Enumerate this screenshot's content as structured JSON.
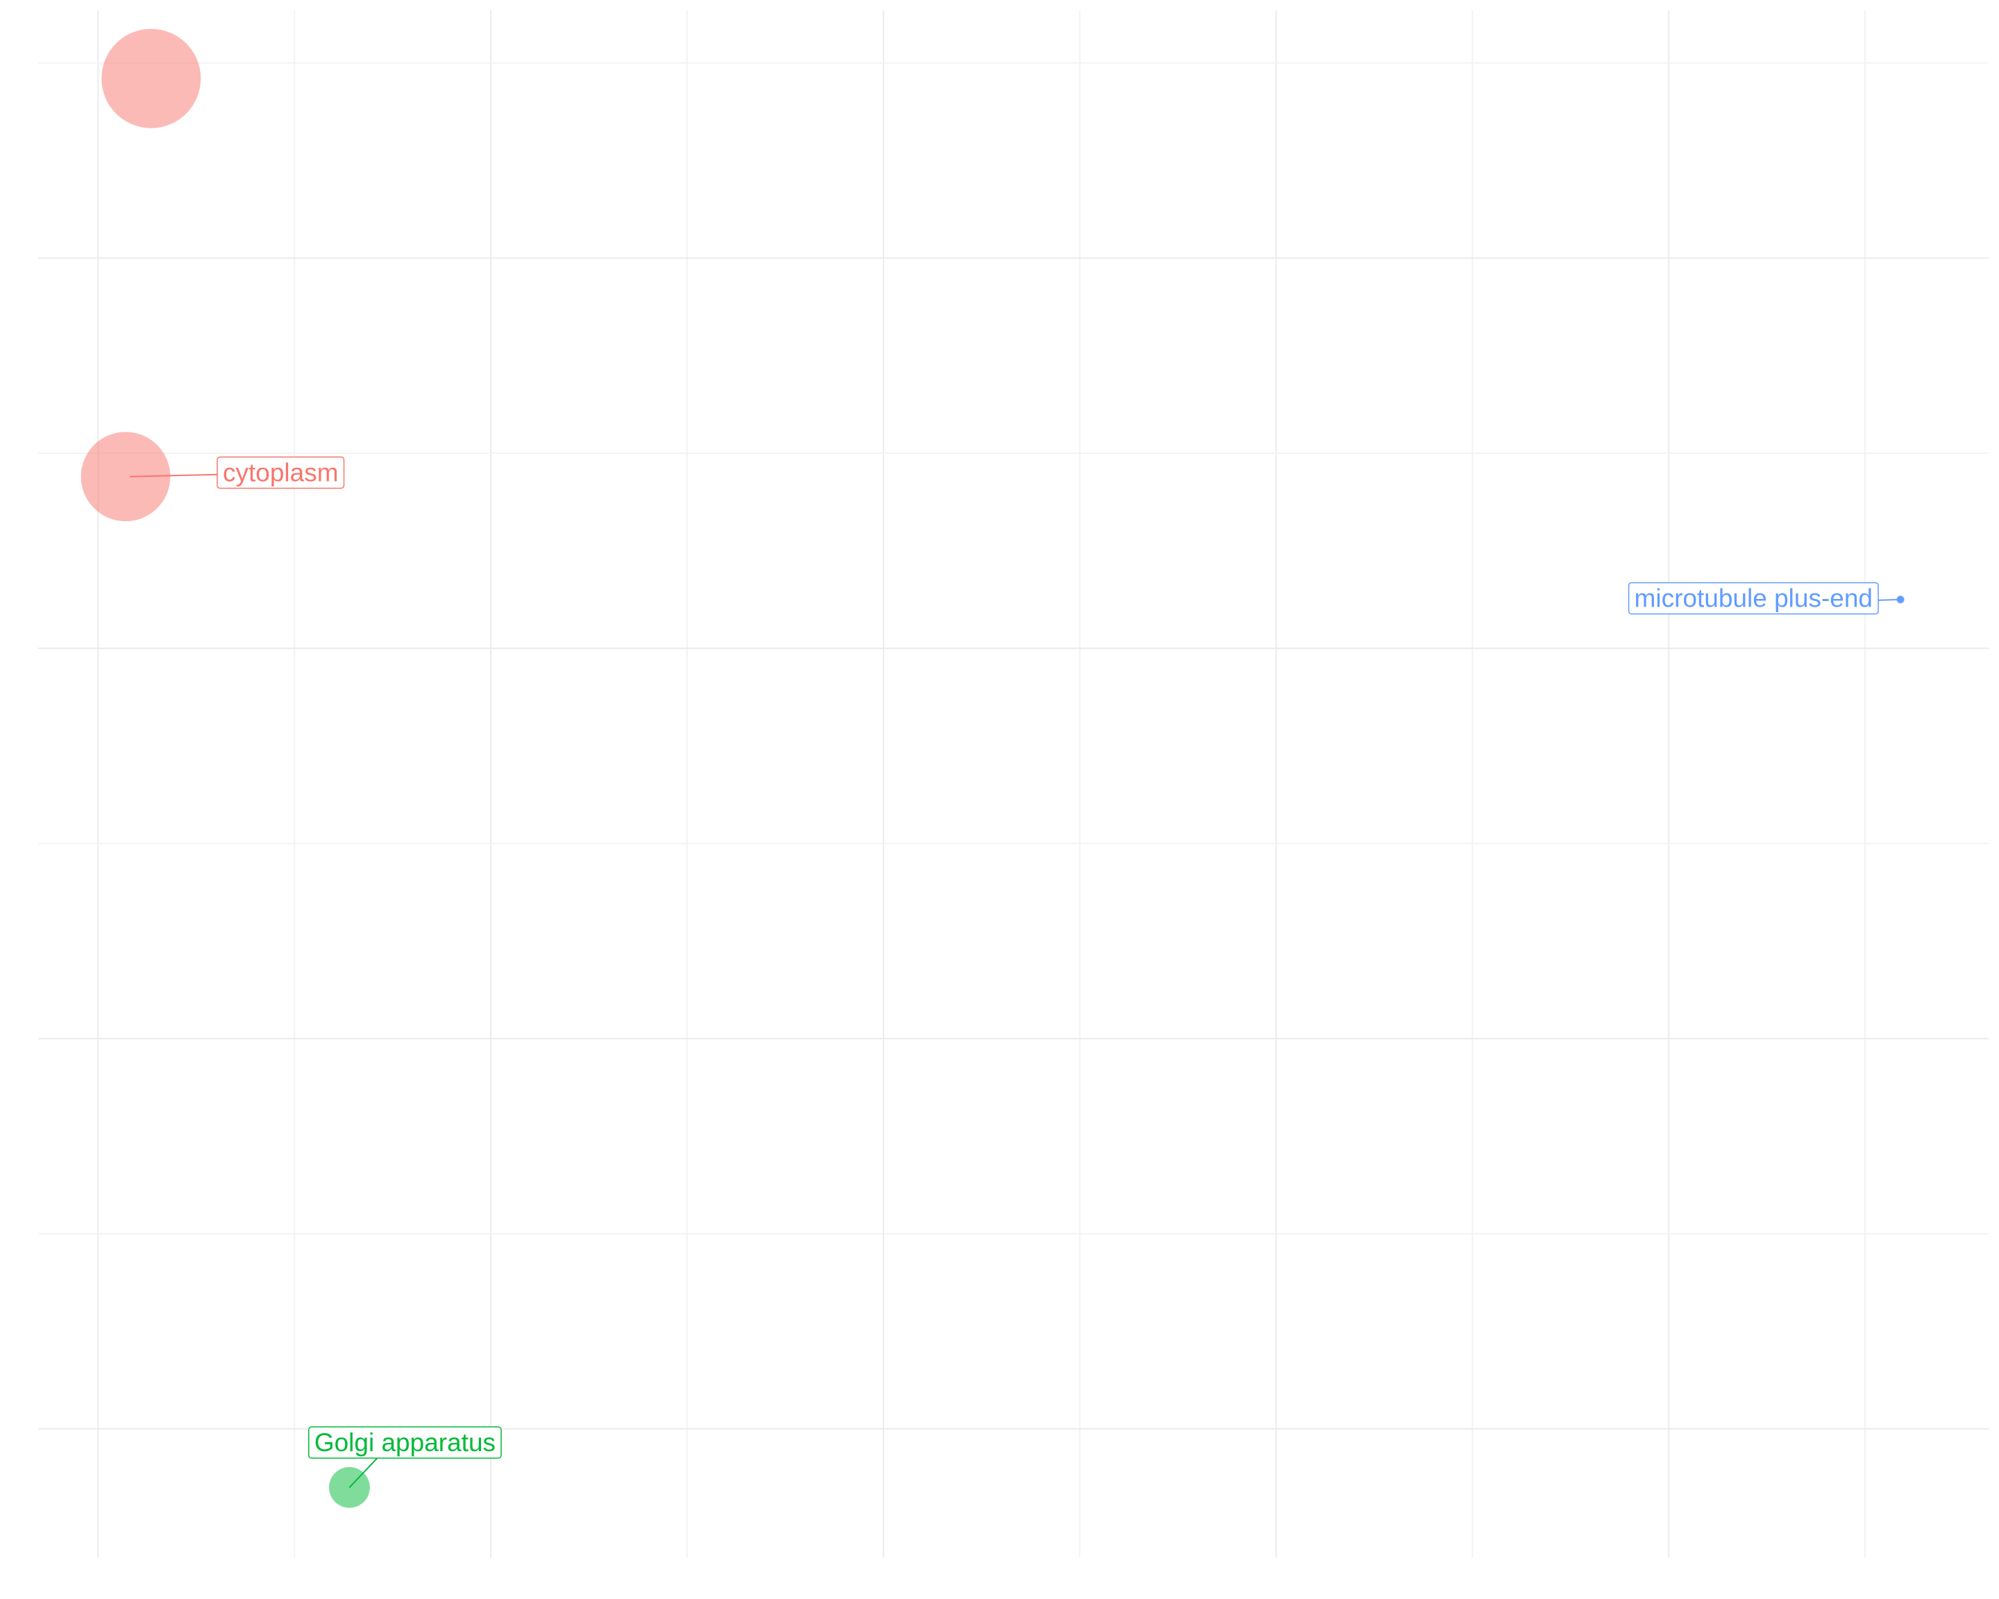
{
  "chart_data": {
    "type": "scatter",
    "xlim": [
      -0.305,
      9.63
    ],
    "ylim": [
      -0.66,
      7.27
    ],
    "xticks": [
      0,
      2,
      4,
      6,
      8
    ],
    "yticks": [
      0,
      2,
      4,
      6
    ],
    "x_minor_ticks": [
      1,
      3,
      5,
      7,
      9
    ],
    "y_minor_ticks": [
      1,
      3,
      5,
      7
    ],
    "grid": true,
    "points": [
      {
        "x": 0.27,
        "y": 6.92,
        "size": 148,
        "label": null,
        "color": "#F8766D"
      },
      {
        "x": 0.14,
        "y": 4.88,
        "size": 120,
        "label": "cytoplasm",
        "color": "#F8766D"
      },
      {
        "x": 9.18,
        "y": 4.25,
        "size": 1,
        "label": "microtubule plus-end",
        "color": "#619CFF"
      },
      {
        "x": 1.28,
        "y": -0.3,
        "size": 25,
        "label": "Golgi apparatus",
        "color": "#00BA38"
      }
    ]
  }
}
